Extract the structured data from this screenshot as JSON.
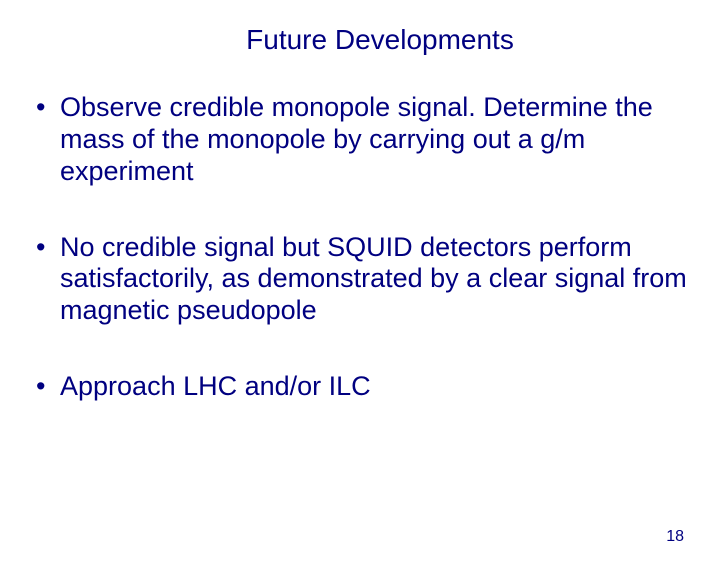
{
  "slide": {
    "title": "Future Developments",
    "title_color": "#000080",
    "title_fontsize": 28,
    "background_color": "#ffffff",
    "bullets": [
      "Observe credible monopole signal. Determine the mass of the monopole by carrying out a g/m experiment",
      "No credible signal but SQUID detectors perform satisfactorily, as demonstrated by a clear signal from magnetic pseudopole",
      "Approach LHC and/or ILC"
    ],
    "bullet_color": "#000080",
    "bullet_fontsize": 27,
    "page_number": "18",
    "page_number_color": "#000080",
    "page_number_fontsize": 16
  }
}
